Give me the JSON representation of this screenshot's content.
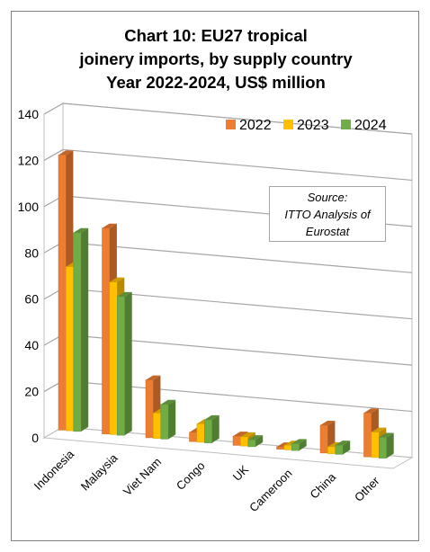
{
  "title_lines": [
    "Chart 10: EU27 tropical",
    "joinery imports, by supply country",
    "Year 2022-2024, US$ million"
  ],
  "source_lines": [
    "Source:",
    "ITTO Analysis of",
    "Eurostat"
  ],
  "chart_data": {
    "type": "bar",
    "title": "Chart 10: EU27 tropical joinery imports, by supply country Year 2022-2024, US$ million",
    "categories": [
      "Indonesia",
      "Malaysia",
      "Viet Nam",
      "Congo",
      "UK",
      "Cameroon",
      "China",
      "Other"
    ],
    "series": [
      {
        "name": "2022",
        "values": [
          119,
          89,
          25,
          4,
          4,
          1,
          12,
          19
        ],
        "color": "#ED7D31"
      },
      {
        "name": "2023",
        "values": [
          71,
          66,
          11,
          8,
          4,
          2,
          3,
          11
        ],
        "color": "#FFC000"
      },
      {
        "name": "2024",
        "values": [
          86,
          60,
          15,
          10,
          3,
          3,
          4,
          9
        ],
        "color": "#70AD47"
      }
    ],
    "ylim": [
      0,
      140
    ],
    "yticks": [
      0,
      20,
      40,
      60,
      80,
      100,
      120,
      140
    ],
    "grid": true,
    "legend": "top-right",
    "three_d": true
  }
}
